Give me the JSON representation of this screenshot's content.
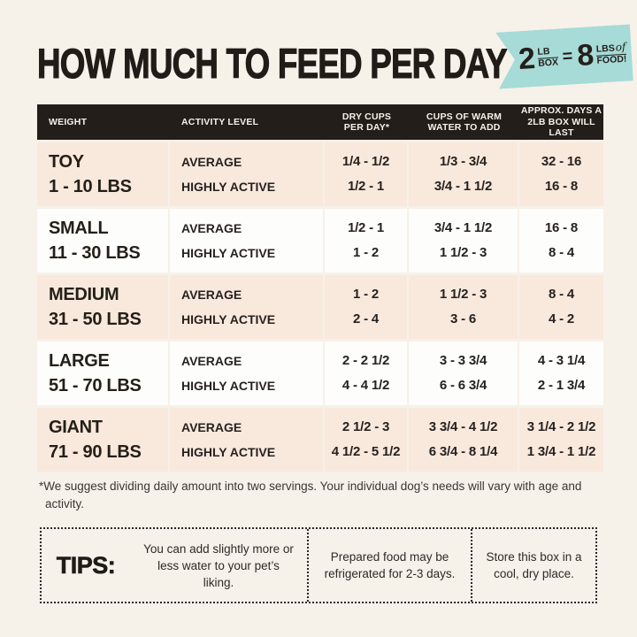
{
  "colors": {
    "page_bg": "#f6f1e9",
    "header_bg": "#241e1a",
    "row_pink": "#f9e8dc",
    "row_white": "#fdfdfb",
    "badge_teal": "#a6dbd7",
    "text_dark": "#211c18"
  },
  "header": {
    "title": "HOW MUCH TO FEED PER DAY",
    "badge": {
      "qty1": "2",
      "unit1_top": "LB",
      "unit1_bottom": "BOX",
      "equals": "=",
      "qty2": "8",
      "unit2_top": "LBS",
      "unit2_of": "of",
      "unit2_bottom": "FOOD!"
    }
  },
  "table": {
    "columns": [
      {
        "line1": "WEIGHT",
        "line2": ""
      },
      {
        "line1": "ACTIVITY LEVEL",
        "line2": ""
      },
      {
        "line1": "DRY CUPS",
        "line2": "PER DAY*"
      },
      {
        "line1": "CUPS OF WARM",
        "line2": "WATER TO ADD"
      },
      {
        "line1": "APPROX. DAYS A",
        "line2": "2LB BOX WILL LAST"
      }
    ],
    "rows": [
      {
        "weight_name": "TOY",
        "weight_range": "1 - 10 LBS",
        "activity": [
          "AVERAGE",
          "HIGHLY ACTIVE"
        ],
        "dry_cups": [
          "1/4 - 1/2",
          "1/2 - 1"
        ],
        "water": [
          "1/3 - 3/4",
          "3/4 - 1 1/2"
        ],
        "days": [
          "32 - 16",
          "16 - 8"
        ]
      },
      {
        "weight_name": "SMALL",
        "weight_range": "11 - 30 LBS",
        "activity": [
          "AVERAGE",
          "HIGHLY ACTIVE"
        ],
        "dry_cups": [
          "1/2 - 1",
          "1 - 2"
        ],
        "water": [
          "3/4 - 1 1/2",
          "1 1/2 - 3"
        ],
        "days": [
          "16 - 8",
          "8 - 4"
        ]
      },
      {
        "weight_name": "MEDIUM",
        "weight_range": "31 - 50 LBS",
        "activity": [
          "AVERAGE",
          "HIGHLY ACTIVE"
        ],
        "dry_cups": [
          "1 - 2",
          "2 - 4"
        ],
        "water": [
          "1 1/2 - 3",
          "3 - 6"
        ],
        "days": [
          "8 - 4",
          "4 - 2"
        ]
      },
      {
        "weight_name": "LARGE",
        "weight_range": "51 - 70 LBS",
        "activity": [
          "AVERAGE",
          "HIGHLY ACTIVE"
        ],
        "dry_cups": [
          "2 - 2 1/2",
          "4 - 4 1/2"
        ],
        "water": [
          "3 - 3 3/4",
          "6 - 6 3/4"
        ],
        "days": [
          "4 - 3 1/4",
          "2 - 1 3/4"
        ]
      },
      {
        "weight_name": "GIANT",
        "weight_range": "71 - 90 LBS",
        "activity": [
          "AVERAGE",
          "HIGHLY ACTIVE"
        ],
        "dry_cups": [
          "2 1/2 - 3",
          "4 1/2 - 5 1/2"
        ],
        "water": [
          "3 3/4 - 4 1/2",
          "6 3/4 - 8 1/4"
        ],
        "days": [
          "3 1/4 - 2 1/2",
          "1 3/4 - 1 1/2"
        ]
      }
    ]
  },
  "footnote": "*We suggest dividing daily amount into two servings. Your individual dog’s needs will vary with age and activity.",
  "tips": {
    "label": "TIPS:",
    "items": [
      "You can add slightly more or less water to your pet’s liking.",
      "Prepared food may be refrigerated for 2-3 days.",
      "Store this box in a cool, dry place."
    ]
  }
}
